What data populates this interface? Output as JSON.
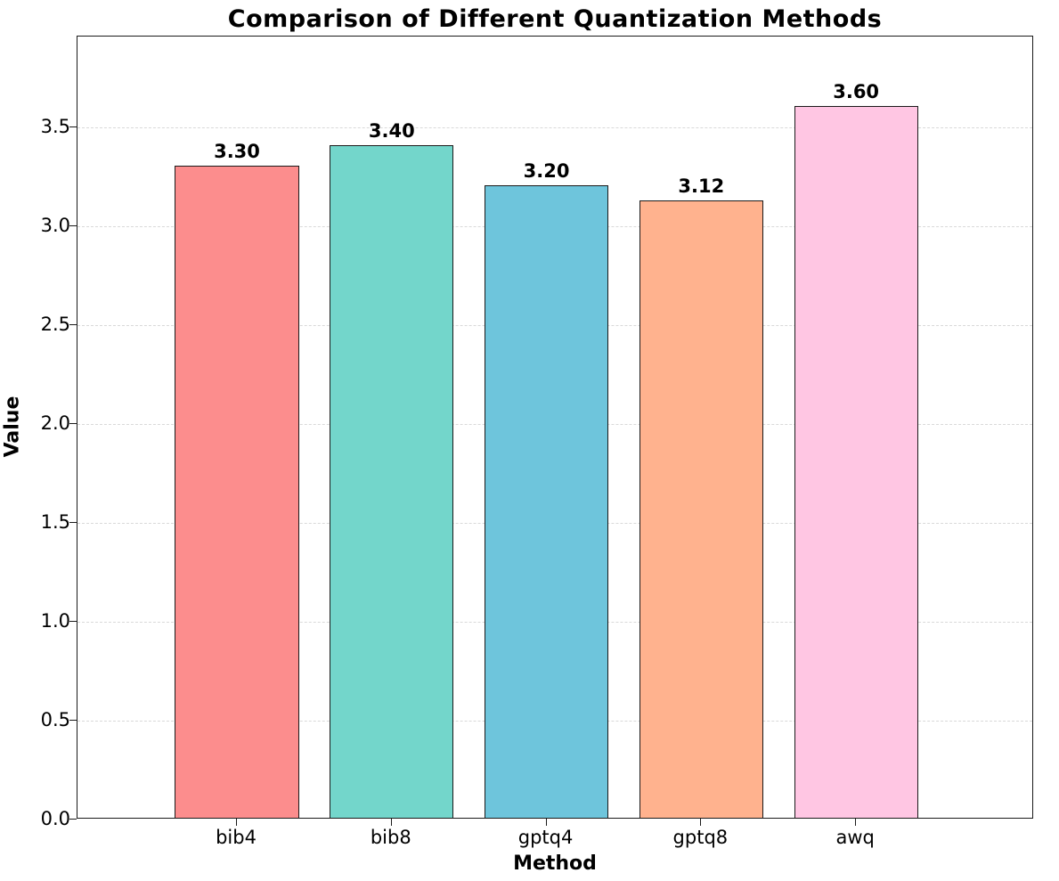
{
  "chart_data": {
    "type": "bar",
    "title": "Comparison of Different Quantization Methods",
    "xlabel": "Method",
    "ylabel": "Value",
    "categories": [
      "bib4",
      "bib8",
      "gptq4",
      "gptq8",
      "awq"
    ],
    "values": [
      3.3,
      3.4,
      3.2,
      3.12,
      3.6
    ],
    "bar_labels": [
      "3.30",
      "3.40",
      "3.20",
      "3.12",
      "3.60"
    ],
    "bar_colors": [
      "#FC8D8D",
      "#73D6CB",
      "#6EC5DC",
      "#FFB28E",
      "#FFC6E3"
    ],
    "bar_edge_color": "#1a1a1a",
    "yticks": [
      0.0,
      0.5,
      1.0,
      1.5,
      2.0,
      2.5,
      3.0,
      3.5
    ],
    "ytick_labels": [
      "0.0",
      "0.5",
      "1.0",
      "1.5",
      "2.0",
      "2.5",
      "3.0",
      "3.5"
    ],
    "ylim": [
      0,
      3.96
    ],
    "grid": "horizontal-dashed",
    "grid_color": "#d9d9d9",
    "legend": "none",
    "background_color": "#ffffff"
  }
}
